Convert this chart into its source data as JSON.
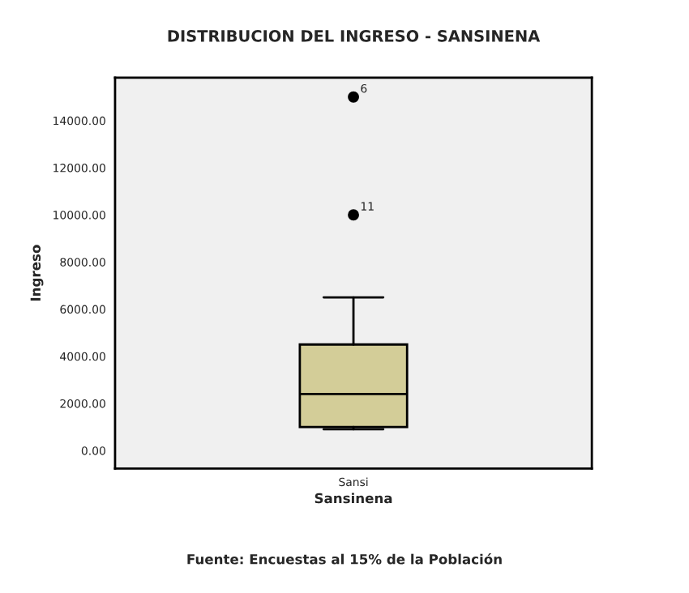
{
  "chart_data": {
    "type": "box",
    "title": "DISTRIBUCION DEL INGRESO - SANSINENA",
    "xlabel": "Sansinena",
    "ylabel": "Ingreso",
    "categories": [
      "Sansi"
    ],
    "boxes": [
      {
        "low": 900,
        "q1": 1000,
        "median": 2400,
        "q3": 4500,
        "high": 6500,
        "outliers": [
          15000,
          10000
        ]
      }
    ],
    "color": "#d3cd98",
    "ylim": [
      -760,
      15820
    ],
    "yticks": [
      {
        "value": 0,
        "label": "0.00"
      },
      {
        "value": 2000,
        "label": "2000.00"
      },
      {
        "value": 4000,
        "label": "4000.00"
      },
      {
        "value": 6000,
        "label": "6000.00"
      },
      {
        "value": 8000,
        "label": "8000.00"
      },
      {
        "value": 10000,
        "label": "10000.00"
      },
      {
        "value": 12000,
        "label": "12000.00"
      },
      {
        "value": 14000,
        "label": "14000.00"
      }
    ],
    "grid": false,
    "annotations": [
      "6",
      "11",
      "Fuente: Encuestas al 15% de la Población"
    ]
  }
}
